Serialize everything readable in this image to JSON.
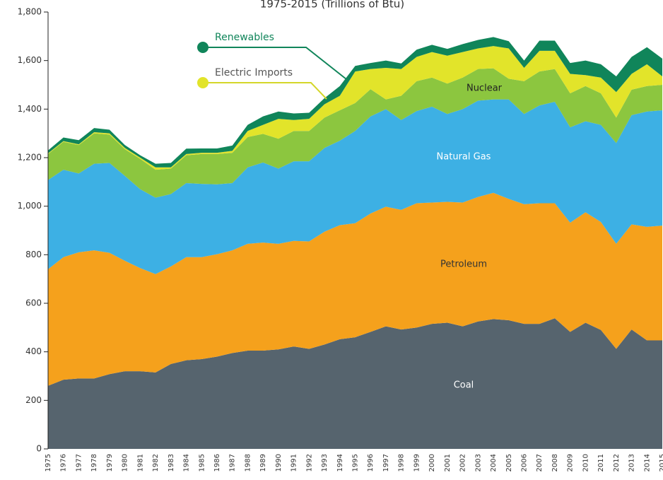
{
  "chart_data": {
    "type": "stacked-area",
    "subtitle": "1975-2015 (Trillions of Btu)",
    "categories": [
      "1975",
      "1976",
      "1977",
      "1978",
      "1979",
      "1980",
      "1981",
      "1982",
      "1983",
      "1984",
      "1985",
      "1986",
      "1987",
      "1988",
      "1989",
      "1990",
      "1991",
      "1992",
      "1993",
      "1994",
      "1995",
      "1996",
      "1997",
      "1998",
      "1999",
      "2000",
      "2001",
      "2002",
      "2003",
      "2004",
      "2005",
      "2006",
      "2007",
      "2008",
      "2009",
      "2010",
      "2011",
      "2012",
      "2013",
      "2014",
      "2015"
    ],
    "series": [
      {
        "name": "Coal",
        "color": "#56646e",
        "values": [
          260,
          285,
          290,
          290,
          308,
          320,
          320,
          315,
          350,
          365,
          370,
          380,
          395,
          405,
          405,
          410,
          422,
          412,
          430,
          452,
          460,
          482,
          505,
          492,
          500,
          515,
          520,
          505,
          525,
          535,
          530,
          515,
          515,
          538,
          482,
          520,
          490,
          412,
          492,
          447,
          447
        ]
      },
      {
        "name": "Petroleum",
        "color": "#f5a11c",
        "values": [
          480,
          505,
          520,
          528,
          500,
          455,
          425,
          405,
          402,
          425,
          420,
          422,
          423,
          440,
          445,
          435,
          435,
          443,
          465,
          470,
          470,
          488,
          493,
          493,
          512,
          500,
          498,
          510,
          513,
          520,
          500,
          493,
          497,
          474,
          450,
          455,
          445,
          433,
          433,
          468,
          473
        ]
      },
      {
        "name": "Natural Gas",
        "color": "#3db0e4",
        "values": [
          368,
          360,
          325,
          357,
          370,
          350,
          325,
          315,
          298,
          305,
          302,
          288,
          277,
          315,
          330,
          310,
          328,
          330,
          345,
          348,
          380,
          400,
          402,
          370,
          380,
          395,
          362,
          385,
          397,
          385,
          410,
          372,
          403,
          418,
          393,
          375,
          400,
          415,
          450,
          475,
          475
        ]
      },
      {
        "name": "Nuclear",
        "color": "#8cc63f",
        "values": [
          107,
          115,
          117,
          125,
          117,
          110,
          125,
          115,
          105,
          115,
          123,
          125,
          125,
          125,
          118,
          123,
          125,
          125,
          125,
          125,
          115,
          112,
          40,
          100,
          123,
          120,
          125,
          130,
          130,
          128,
          85,
          135,
          140,
          135,
          140,
          145,
          130,
          105,
          105,
          105,
          105
        ]
      },
      {
        "name": "Electric Imports",
        "color": "#e2e42a",
        "values": [
          3,
          3,
          3,
          5,
          5,
          5,
          5,
          10,
          5,
          5,
          5,
          5,
          8,
          25,
          37,
          82,
          45,
          50,
          55,
          60,
          130,
          83,
          130,
          110,
          100,
          105,
          115,
          105,
          85,
          92,
          125,
          55,
          85,
          75,
          80,
          45,
          65,
          105,
          65,
          90,
          35
        ]
      },
      {
        "name": "Renewables",
        "color": "#10855a",
        "values": [
          12,
          15,
          17,
          17,
          15,
          12,
          10,
          15,
          18,
          22,
          18,
          18,
          22,
          25,
          35,
          30,
          27,
          25,
          25,
          40,
          23,
          25,
          30,
          23,
          30,
          30,
          28,
          33,
          35,
          37,
          30,
          30,
          42,
          42,
          45,
          60,
          55,
          65,
          70,
          70,
          73
        ]
      }
    ],
    "ylim": [
      0,
      1800
    ],
    "yticks": [
      0,
      200,
      400,
      600,
      800,
      {
        "value": 1000,
        "label": "1,000"
      },
      {
        "value": 1200,
        "label": "1,200"
      },
      {
        "value": 1400,
        "label": "1,400"
      },
      {
        "value": 1600,
        "label": "1,600"
      },
      {
        "value": 1800,
        "label": "1,800"
      }
    ]
  }
}
